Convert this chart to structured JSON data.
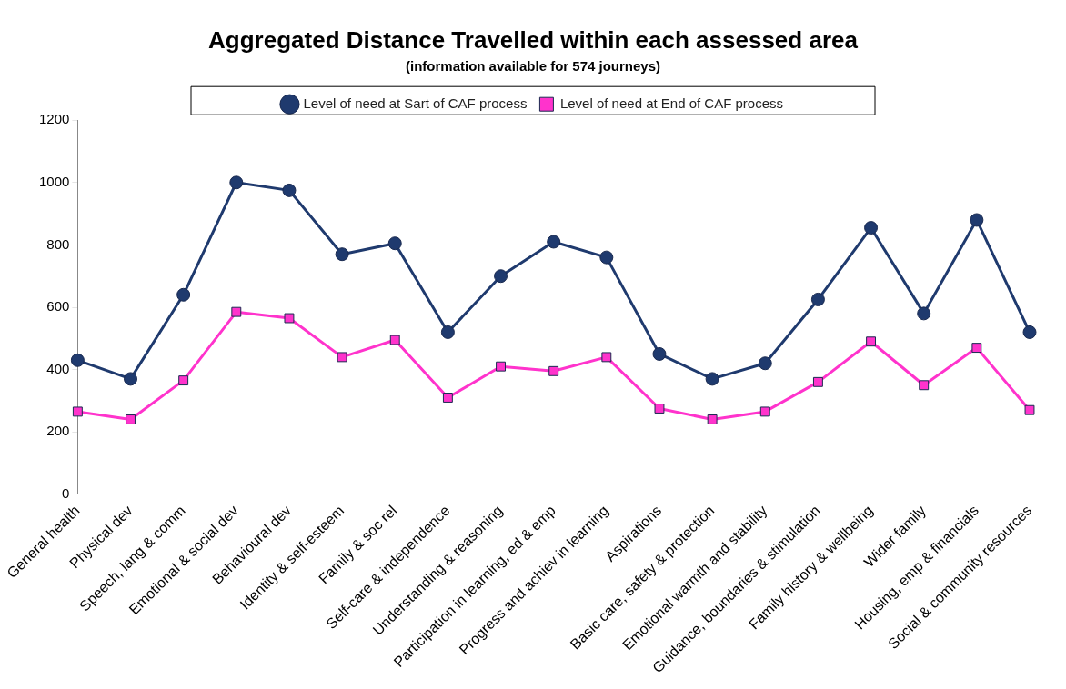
{
  "chart_data": {
    "type": "line",
    "title": "Aggregated Distance Travelled within each assessed area",
    "subtitle": "(information available for 574 journeys)",
    "categories": [
      "General health",
      "Physical dev",
      "Speech, lang & comm",
      "Emotional & social dev",
      "Behavioural dev",
      "Identity & self-esteem",
      "Family & soc rel",
      "Self-care & independence",
      "Understanding & reasoning",
      "Participation in learning, ed & emp",
      "Progress and achiev in learning",
      "Aspirations",
      "Basic care, safety & protection",
      "Emotional warmth and stability",
      "Guidance, boundaries & stimulation",
      "Family history & wellbeing",
      "Wider family",
      "Housing, emp & financials",
      "Social & community resources"
    ],
    "series": [
      {
        "name": "Level of need at Sart of CAF process",
        "color": "#1f3a6e",
        "marker": "circle",
        "values": [
          430,
          370,
          640,
          1000,
          975,
          770,
          805,
          520,
          700,
          810,
          760,
          450,
          370,
          420,
          625,
          855,
          580,
          880,
          520
        ]
      },
      {
        "name": "Level of need at End of CAF process",
        "color": "#ff33cc",
        "marker": "square",
        "values": [
          265,
          240,
          365,
          585,
          565,
          440,
          495,
          310,
          410,
          395,
          440,
          275,
          240,
          265,
          360,
          490,
          350,
          470,
          270
        ]
      }
    ],
    "ylim": [
      0,
      1200
    ],
    "yticks": [
      0,
      200,
      400,
      600,
      800,
      1000,
      1200
    ],
    "grid": false,
    "legend": "top",
    "line_style": "solid"
  }
}
